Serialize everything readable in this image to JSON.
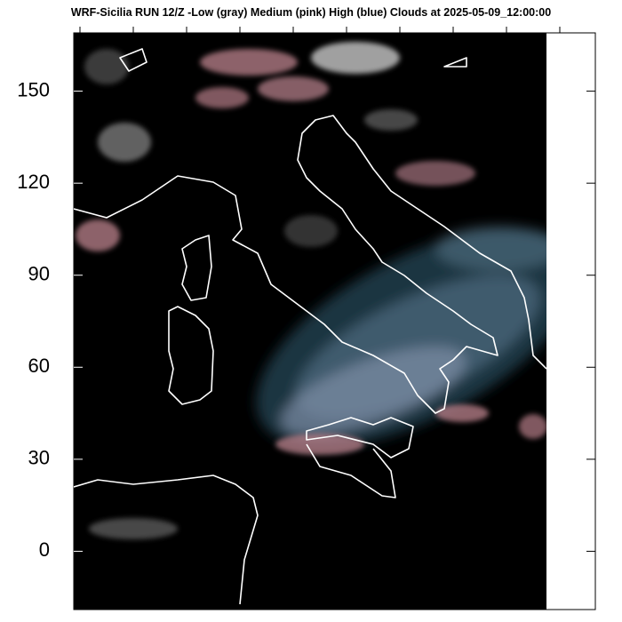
{
  "map": {
    "title": "WRF-Sicilia RUN 12/Z -Low (gray) Medium (pink) High (blue) Clouds at 2025-05-09_12:00:00",
    "ylim": [
      -19,
      169
    ],
    "yticks": [
      0,
      30,
      60,
      90,
      120,
      150
    ]
  }
}
